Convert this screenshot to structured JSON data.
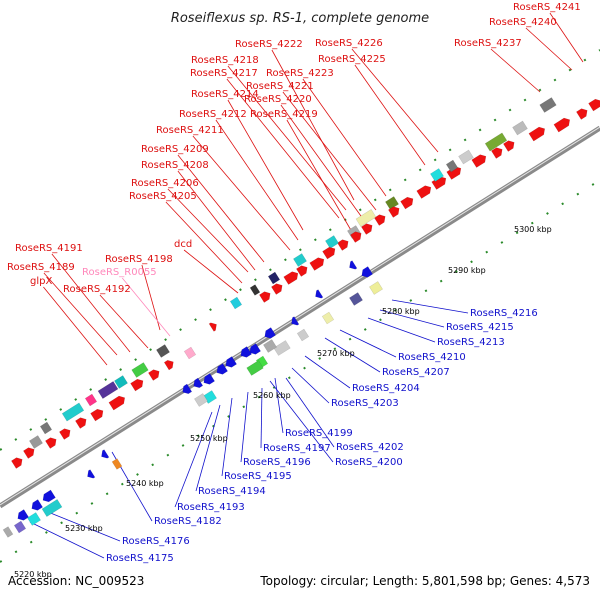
{
  "title": "Roseiflexus sp. RS-1, complete genome",
  "footer": {
    "accession": "Accession: NC_009523",
    "stats": "Topology: circular; Length: 5,801,598 bp; Genes: 4,573"
  },
  "colors": {
    "forward_gene": "#ee1111",
    "reverse_gene": "#1111dd",
    "rna_label": "#ff88bb",
    "backbone": "#999999"
  },
  "ticks": [
    {
      "label": "5220 kbp",
      "kbp": 5220
    },
    {
      "label": "5230 kbp",
      "kbp": 5230
    },
    {
      "label": "5240 kbp",
      "kbp": 5240
    },
    {
      "label": "5250 kbp",
      "kbp": 5250
    },
    {
      "label": "5260 kbp",
      "kbp": 5260
    },
    {
      "label": "5270 kbp",
      "kbp": 5270
    },
    {
      "label": "5280 kbp",
      "kbp": 5280
    },
    {
      "label": "5290 kbp",
      "kbp": 5290
    },
    {
      "label": "5300 kbp",
      "kbp": 5300
    }
  ],
  "labels_forward": [
    "RoseRS_4241",
    "RoseRS_4240",
    "RoseRS_4237",
    "RoseRS_4226",
    "RoseRS_4225",
    "RoseRS_4222",
    "RoseRS_4218",
    "RoseRS_4217",
    "RoseRS_4223",
    "RoseRS_4221",
    "RoseRS_4214",
    "RoseRS_4220",
    "RoseRS_4212",
    "RoseRS_4219",
    "RoseRS_4211",
    "RoseRS_4209",
    "RoseRS_4208",
    "RoseRS_4206",
    "RoseRS_4205",
    "dcd",
    "RoseRS_4191",
    "RoseRS_4198",
    "RoseRS_4189",
    "RoseRS_R0055",
    "glpX",
    "RoseRS_4192"
  ],
  "labels_reverse": [
    "RoseRS_4216",
    "RoseRS_4215",
    "RoseRS_4213",
    "RoseRS_4210",
    "RoseRS_4207",
    "RoseRS_4204",
    "RoseRS_4203",
    "RoseRS_4199",
    "RoseRS_4202",
    "RoseRS_4197",
    "RoseRS_4200",
    "RoseRS_4196",
    "RoseRS_4195",
    "RoseRS_4194",
    "RoseRS_4193",
    "RoseRS_4182",
    "RoseRS_4176",
    "RoseRS_4175"
  ]
}
